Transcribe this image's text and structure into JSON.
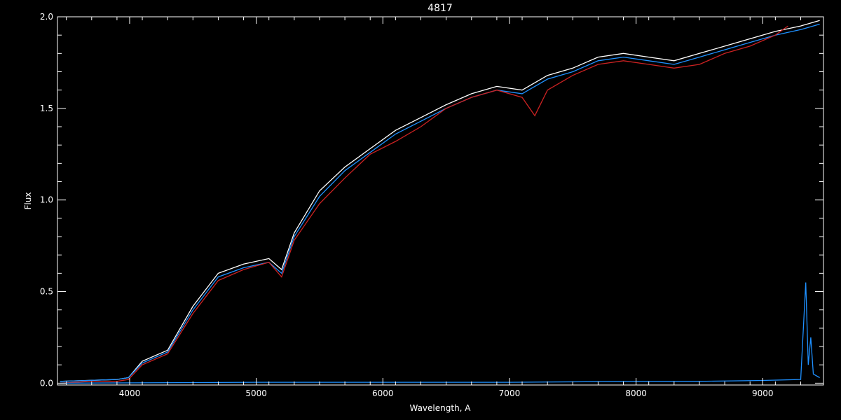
{
  "chart_data": {
    "type": "line",
    "title": "4817",
    "xlabel": "Wavelength, A",
    "ylabel": "Flux",
    "xlim": [
      3430,
      9480
    ],
    "ylim": [
      -0.01,
      2.0
    ],
    "x_ticks": [
      4000,
      5000,
      6000,
      7000,
      8000,
      9000
    ],
    "x_tick_labels": [
      "4000",
      "5000",
      "6000",
      "7000",
      "8000",
      "9000"
    ],
    "y_ticks": [
      0.0,
      0.5,
      1.0,
      1.5,
      2.0
    ],
    "y_tick_labels": [
      "0.0",
      "0.5",
      "1.0",
      "1.5",
      "2.0"
    ],
    "grid": false,
    "background": "#000000",
    "series": [
      {
        "color": "#ffffff",
        "x": [
          3450,
          3900,
          3990,
          4100,
          4300,
          4500,
          4700,
          4900,
          5100,
          5200,
          5300,
          5500,
          5700,
          5900,
          6100,
          6300,
          6500,
          6700,
          6900,
          7100,
          7300,
          7500,
          7700,
          7900,
          8100,
          8300,
          8500,
          8700,
          8900,
          9100,
          9300,
          9450
        ],
        "y": [
          0.01,
          0.02,
          0.03,
          0.12,
          0.18,
          0.42,
          0.6,
          0.65,
          0.68,
          0.62,
          0.82,
          1.05,
          1.18,
          1.28,
          1.38,
          1.45,
          1.52,
          1.58,
          1.62,
          1.6,
          1.68,
          1.72,
          1.78,
          1.8,
          1.78,
          1.76,
          1.8,
          1.84,
          1.88,
          1.92,
          1.95,
          1.98
        ]
      },
      {
        "color": "#1e90ff",
        "x": [
          3450,
          3900,
          3990,
          4100,
          4300,
          4500,
          4700,
          4900,
          5100,
          5200,
          5300,
          5500,
          5700,
          5900,
          6100,
          6300,
          6500,
          6700,
          6900,
          7100,
          7300,
          7500,
          7700,
          7900,
          8100,
          8300,
          8500,
          8700,
          8900,
          9100,
          9300,
          9450
        ],
        "y": [
          0.01,
          0.02,
          0.03,
          0.11,
          0.17,
          0.4,
          0.58,
          0.63,
          0.66,
          0.6,
          0.8,
          1.02,
          1.16,
          1.26,
          1.36,
          1.43,
          1.5,
          1.56,
          1.6,
          1.58,
          1.66,
          1.7,
          1.76,
          1.78,
          1.76,
          1.74,
          1.78,
          1.82,
          1.86,
          1.9,
          1.93,
          1.96
        ]
      },
      {
        "color": "#cc2222",
        "x": [
          3450,
          3700,
          3900,
          3990,
          4100,
          4300,
          4500,
          4700,
          4900,
          5000,
          5100,
          5200,
          5300,
          5500,
          5700,
          5900,
          6100,
          6300,
          6500,
          6700,
          6900,
          7100,
          7200,
          7300,
          7500,
          7700,
          7900,
          8100,
          8300,
          8500,
          8700,
          8900,
          9100,
          9200
        ],
        "y": [
          0.0,
          0.01,
          0.01,
          0.02,
          0.1,
          0.16,
          0.38,
          0.56,
          0.62,
          0.64,
          0.66,
          0.58,
          0.78,
          0.98,
          1.12,
          1.25,
          1.32,
          1.4,
          1.5,
          1.56,
          1.6,
          1.56,
          1.46,
          1.6,
          1.68,
          1.74,
          1.76,
          1.74,
          1.72,
          1.74,
          1.8,
          1.84,
          1.9,
          1.95
        ]
      },
      {
        "color": "#1e90ff",
        "x": [
          3450,
          5000,
          6000,
          7000,
          8000,
          8500,
          9000,
          9300,
          9340,
          9360,
          9380,
          9400,
          9450
        ],
        "y": [
          0.0,
          0.005,
          0.005,
          0.005,
          0.01,
          0.01,
          0.015,
          0.02,
          0.55,
          0.1,
          0.25,
          0.05,
          0.03
        ]
      }
    ]
  }
}
